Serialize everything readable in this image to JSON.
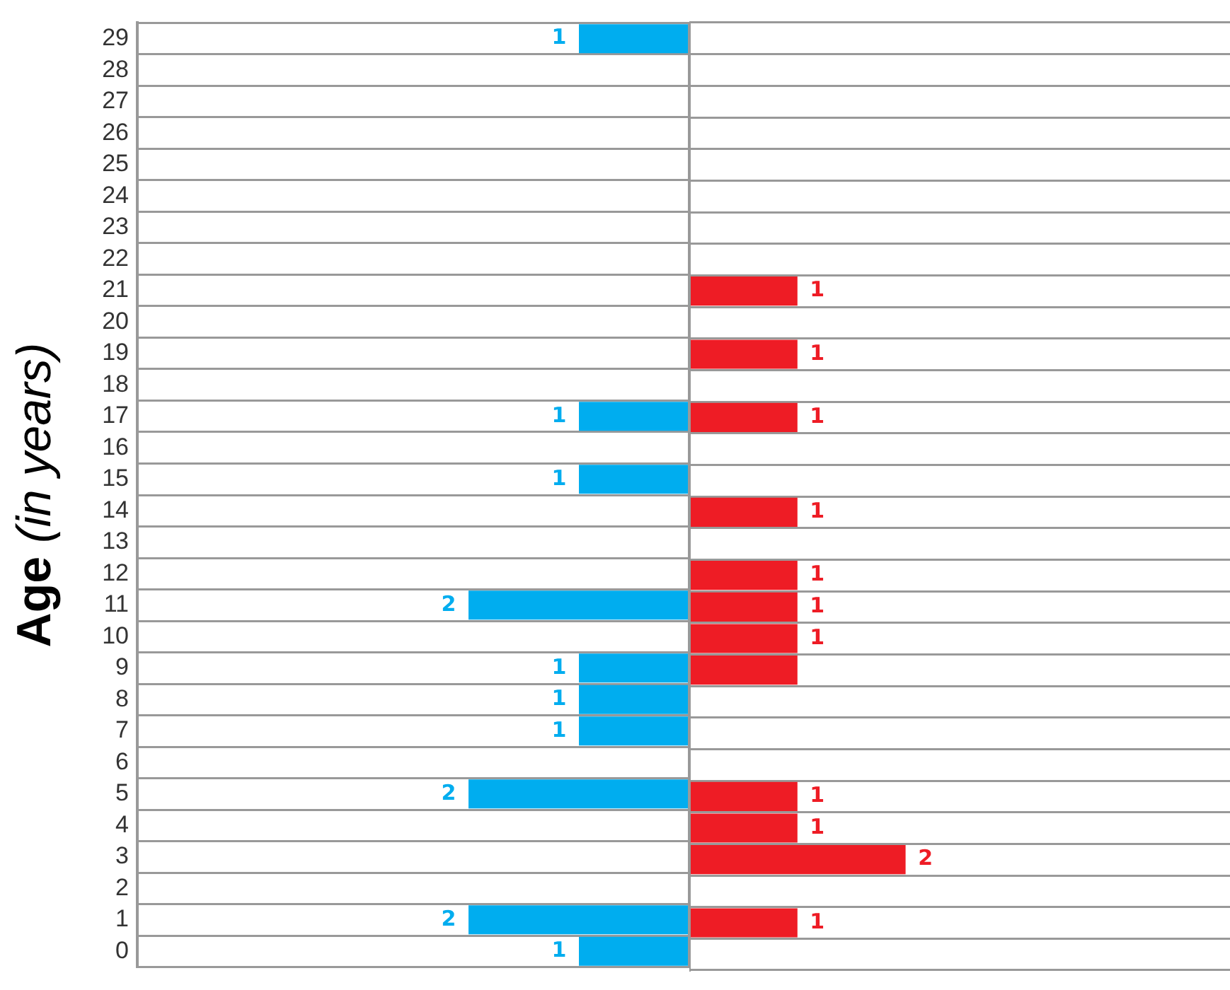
{
  "chart_data": [
    {
      "type": "bar",
      "orientation": "horizontal",
      "ylabel": "Age (in years)",
      "categories": [
        "29",
        "28",
        "27",
        "26",
        "25",
        "24",
        "23",
        "22",
        "21",
        "20",
        "19",
        "18",
        "17",
        "16",
        "15",
        "14",
        "13",
        "12",
        "11",
        "10",
        "9",
        "8",
        "7",
        "6",
        "5",
        "4",
        "3",
        "2",
        "1",
        "0"
      ],
      "series": [
        {
          "color": "#00adef",
          "values": [
            1,
            null,
            null,
            null,
            null,
            null,
            null,
            null,
            null,
            null,
            null,
            null,
            1,
            null,
            1,
            null,
            null,
            null,
            2,
            null,
            1,
            1,
            1,
            null,
            2,
            null,
            null,
            null,
            2,
            1
          ],
          "value_labels": [
            "1",
            null,
            null,
            null,
            null,
            null,
            null,
            null,
            null,
            null,
            null,
            null,
            "1",
            null,
            "1",
            null,
            null,
            null,
            "2",
            null,
            "1",
            "1",
            "1",
            null,
            "2",
            null,
            null,
            null,
            "2",
            "1"
          ]
        }
      ],
      "xlim": [
        5,
        0
      ],
      "grid": "y",
      "tick_labels": "y"
    },
    {
      "type": "bar",
      "orientation": "horizontal",
      "categories": [
        "29",
        "28",
        "27",
        "26",
        "25",
        "24",
        "23",
        "22",
        "21",
        "20",
        "19",
        "18",
        "17",
        "16",
        "15",
        "14",
        "13",
        "12",
        "11",
        "10",
        "9",
        "8",
        "7",
        "6",
        "5",
        "4",
        "3",
        "2",
        "1",
        "0"
      ],
      "series": [
        {
          "color": "#ee1c25",
          "values": [
            null,
            null,
            null,
            null,
            null,
            null,
            null,
            null,
            1,
            null,
            1,
            null,
            1,
            null,
            null,
            1,
            null,
            1,
            1,
            1,
            1,
            null,
            null,
            null,
            1,
            1,
            2,
            null,
            1,
            null
          ],
          "value_labels": [
            null,
            null,
            null,
            null,
            null,
            null,
            null,
            null,
            "1",
            null,
            "1",
            null,
            "1",
            null,
            null,
            "1",
            null,
            "1",
            "1",
            "1",
            null,
            null,
            null,
            null,
            "1",
            "1",
            "2",
            null,
            "1",
            null
          ]
        }
      ],
      "xlim": [
        0,
        5
      ],
      "grid": "y",
      "tick_labels": false
    }
  ]
}
